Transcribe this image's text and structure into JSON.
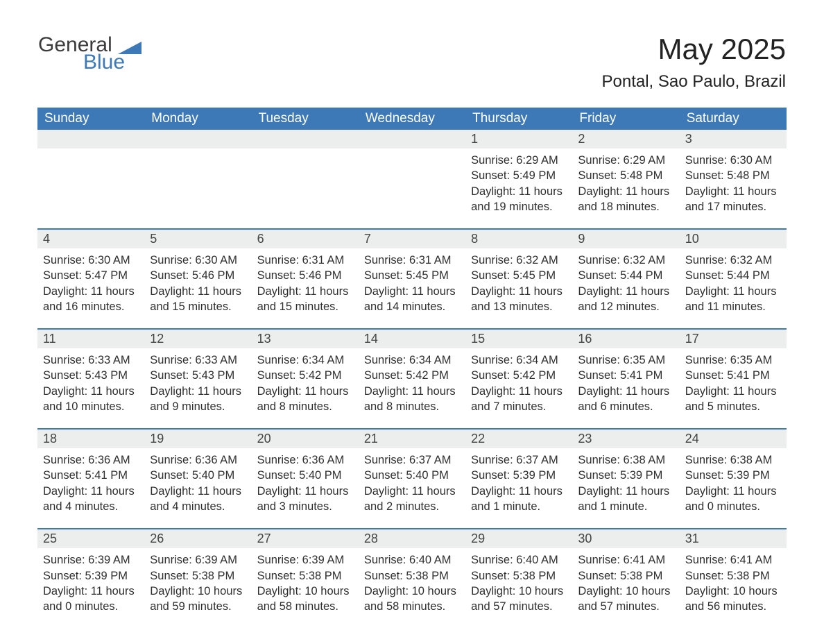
{
  "logo": {
    "word1": "General",
    "word2": "Blue",
    "accent_color": "#3d78b7",
    "text_color": "#3b3b3b"
  },
  "title": "May 2025",
  "subtitle": "Pontal, Sao Paulo, Brazil",
  "theme": {
    "header_bg": "#3d78b7",
    "header_text": "#ffffff",
    "daynum_bg": "#eceded",
    "row_border": "#3d78b7",
    "body_text": "#2f2f2f",
    "page_bg": "#ffffff",
    "title_fontsize": 42,
    "subtitle_fontsize": 24,
    "header_fontsize": 19,
    "daynum_fontsize": 18,
    "cell_fontsize": 16.5
  },
  "columns": [
    "Sunday",
    "Monday",
    "Tuesday",
    "Wednesday",
    "Thursday",
    "Friday",
    "Saturday"
  ],
  "weeks": [
    [
      null,
      null,
      null,
      null,
      {
        "n": "1",
        "sr": "Sunrise: 6:29 AM",
        "ss": "Sunset: 5:49 PM",
        "d1": "Daylight: 11 hours",
        "d2": "and 19 minutes."
      },
      {
        "n": "2",
        "sr": "Sunrise: 6:29 AM",
        "ss": "Sunset: 5:48 PM",
        "d1": "Daylight: 11 hours",
        "d2": "and 18 minutes."
      },
      {
        "n": "3",
        "sr": "Sunrise: 6:30 AM",
        "ss": "Sunset: 5:48 PM",
        "d1": "Daylight: 11 hours",
        "d2": "and 17 minutes."
      }
    ],
    [
      {
        "n": "4",
        "sr": "Sunrise: 6:30 AM",
        "ss": "Sunset: 5:47 PM",
        "d1": "Daylight: 11 hours",
        "d2": "and 16 minutes."
      },
      {
        "n": "5",
        "sr": "Sunrise: 6:30 AM",
        "ss": "Sunset: 5:46 PM",
        "d1": "Daylight: 11 hours",
        "d2": "and 15 minutes."
      },
      {
        "n": "6",
        "sr": "Sunrise: 6:31 AM",
        "ss": "Sunset: 5:46 PM",
        "d1": "Daylight: 11 hours",
        "d2": "and 15 minutes."
      },
      {
        "n": "7",
        "sr": "Sunrise: 6:31 AM",
        "ss": "Sunset: 5:45 PM",
        "d1": "Daylight: 11 hours",
        "d2": "and 14 minutes."
      },
      {
        "n": "8",
        "sr": "Sunrise: 6:32 AM",
        "ss": "Sunset: 5:45 PM",
        "d1": "Daylight: 11 hours",
        "d2": "and 13 minutes."
      },
      {
        "n": "9",
        "sr": "Sunrise: 6:32 AM",
        "ss": "Sunset: 5:44 PM",
        "d1": "Daylight: 11 hours",
        "d2": "and 12 minutes."
      },
      {
        "n": "10",
        "sr": "Sunrise: 6:32 AM",
        "ss": "Sunset: 5:44 PM",
        "d1": "Daylight: 11 hours",
        "d2": "and 11 minutes."
      }
    ],
    [
      {
        "n": "11",
        "sr": "Sunrise: 6:33 AM",
        "ss": "Sunset: 5:43 PM",
        "d1": "Daylight: 11 hours",
        "d2": "and 10 minutes."
      },
      {
        "n": "12",
        "sr": "Sunrise: 6:33 AM",
        "ss": "Sunset: 5:43 PM",
        "d1": "Daylight: 11 hours",
        "d2": "and 9 minutes."
      },
      {
        "n": "13",
        "sr": "Sunrise: 6:34 AM",
        "ss": "Sunset: 5:42 PM",
        "d1": "Daylight: 11 hours",
        "d2": "and 8 minutes."
      },
      {
        "n": "14",
        "sr": "Sunrise: 6:34 AM",
        "ss": "Sunset: 5:42 PM",
        "d1": "Daylight: 11 hours",
        "d2": "and 8 minutes."
      },
      {
        "n": "15",
        "sr": "Sunrise: 6:34 AM",
        "ss": "Sunset: 5:42 PM",
        "d1": "Daylight: 11 hours",
        "d2": "and 7 minutes."
      },
      {
        "n": "16",
        "sr": "Sunrise: 6:35 AM",
        "ss": "Sunset: 5:41 PM",
        "d1": "Daylight: 11 hours",
        "d2": "and 6 minutes."
      },
      {
        "n": "17",
        "sr": "Sunrise: 6:35 AM",
        "ss": "Sunset: 5:41 PM",
        "d1": "Daylight: 11 hours",
        "d2": "and 5 minutes."
      }
    ],
    [
      {
        "n": "18",
        "sr": "Sunrise: 6:36 AM",
        "ss": "Sunset: 5:41 PM",
        "d1": "Daylight: 11 hours",
        "d2": "and 4 minutes."
      },
      {
        "n": "19",
        "sr": "Sunrise: 6:36 AM",
        "ss": "Sunset: 5:40 PM",
        "d1": "Daylight: 11 hours",
        "d2": "and 4 minutes."
      },
      {
        "n": "20",
        "sr": "Sunrise: 6:36 AM",
        "ss": "Sunset: 5:40 PM",
        "d1": "Daylight: 11 hours",
        "d2": "and 3 minutes."
      },
      {
        "n": "21",
        "sr": "Sunrise: 6:37 AM",
        "ss": "Sunset: 5:40 PM",
        "d1": "Daylight: 11 hours",
        "d2": "and 2 minutes."
      },
      {
        "n": "22",
        "sr": "Sunrise: 6:37 AM",
        "ss": "Sunset: 5:39 PM",
        "d1": "Daylight: 11 hours",
        "d2": "and 1 minute."
      },
      {
        "n": "23",
        "sr": "Sunrise: 6:38 AM",
        "ss": "Sunset: 5:39 PM",
        "d1": "Daylight: 11 hours",
        "d2": "and 1 minute."
      },
      {
        "n": "24",
        "sr": "Sunrise: 6:38 AM",
        "ss": "Sunset: 5:39 PM",
        "d1": "Daylight: 11 hours",
        "d2": "and 0 minutes."
      }
    ],
    [
      {
        "n": "25",
        "sr": "Sunrise: 6:39 AM",
        "ss": "Sunset: 5:39 PM",
        "d1": "Daylight: 11 hours",
        "d2": "and 0 minutes."
      },
      {
        "n": "26",
        "sr": "Sunrise: 6:39 AM",
        "ss": "Sunset: 5:38 PM",
        "d1": "Daylight: 10 hours",
        "d2": "and 59 minutes."
      },
      {
        "n": "27",
        "sr": "Sunrise: 6:39 AM",
        "ss": "Sunset: 5:38 PM",
        "d1": "Daylight: 10 hours",
        "d2": "and 58 minutes."
      },
      {
        "n": "28",
        "sr": "Sunrise: 6:40 AM",
        "ss": "Sunset: 5:38 PM",
        "d1": "Daylight: 10 hours",
        "d2": "and 58 minutes."
      },
      {
        "n": "29",
        "sr": "Sunrise: 6:40 AM",
        "ss": "Sunset: 5:38 PM",
        "d1": "Daylight: 10 hours",
        "d2": "and 57 minutes."
      },
      {
        "n": "30",
        "sr": "Sunrise: 6:41 AM",
        "ss": "Sunset: 5:38 PM",
        "d1": "Daylight: 10 hours",
        "d2": "and 57 minutes."
      },
      {
        "n": "31",
        "sr": "Sunrise: 6:41 AM",
        "ss": "Sunset: 5:38 PM",
        "d1": "Daylight: 10 hours",
        "d2": "and 56 minutes."
      }
    ]
  ]
}
